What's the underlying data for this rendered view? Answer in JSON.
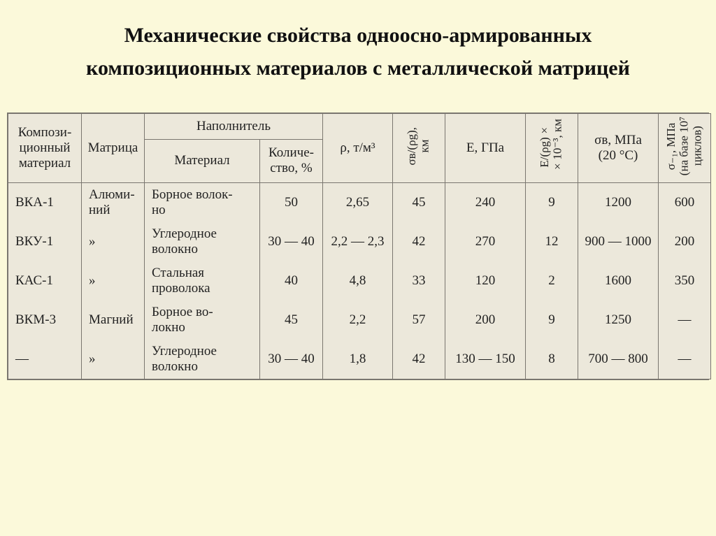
{
  "title": "Механические свойства одноосно-армированных композиционных материалов с металлической матрицей",
  "table": {
    "background_color": "#ece8db",
    "border_color": "#7a766f",
    "page_background": "#fbf9da",
    "header_fontsize": 19,
    "body_fontsize": 19,
    "columns": {
      "c0": "Компози-\nционный\nматериал",
      "c1": "Матрица",
      "filler_group": "Наполнитель",
      "c2": "Материал",
      "c3": "Количе-\nство, %",
      "c4": "ρ, т/м³",
      "c5": "σв/(ρg),\nкм",
      "c6": "E, ГПа",
      "c7": "E/(ρg)×\n×10⁻³, км",
      "c8": "σв, МПа\n(20 °C)",
      "c9": "σ₋₁, МПа\n(на базе 10⁷\nциклов)"
    },
    "rows": [
      {
        "material": "ВКА-1",
        "matrix": "Алюми-\nний",
        "filler": "Борное волок-\nно",
        "qty": "50",
        "rho": "2,65",
        "sigma_rho": "45",
        "E": "240",
        "E_rho": "9",
        "sigma_v": "1200",
        "sigma_1": "600"
      },
      {
        "material": "ВКУ-1",
        "matrix": "»",
        "filler": "Углеродное\nволокно",
        "qty": "30 — 40",
        "rho": "2,2 — 2,3",
        "E": "270",
        "sigma_rho": "42",
        "E_rho": "12",
        "sigma_v": "900 — 1000",
        "sigma_1": "200"
      },
      {
        "material": "КАС-1",
        "matrix": "»",
        "filler": "Стальная\nпроволока",
        "qty": "40",
        "rho": "4,8",
        "sigma_rho": "33",
        "E": "120",
        "E_rho": "2",
        "sigma_v": "1600",
        "sigma_1": "350"
      },
      {
        "material": "ВКМ-3",
        "matrix": "Магний",
        "filler": "Борное во-\nлокно",
        "qty": "45",
        "rho": "2,2",
        "sigma_rho": "57",
        "E": "200",
        "E_rho": "9",
        "sigma_v": "1250",
        "sigma_1": "—"
      },
      {
        "material": "—",
        "matrix": "»",
        "filler": "Углеродное\nволокно",
        "qty": "30 — 40",
        "rho": "1,8",
        "sigma_rho": "42",
        "E": "130 — 150",
        "E_rho": "8",
        "sigma_v": "700 — 800",
        "sigma_1": "—"
      }
    ]
  }
}
